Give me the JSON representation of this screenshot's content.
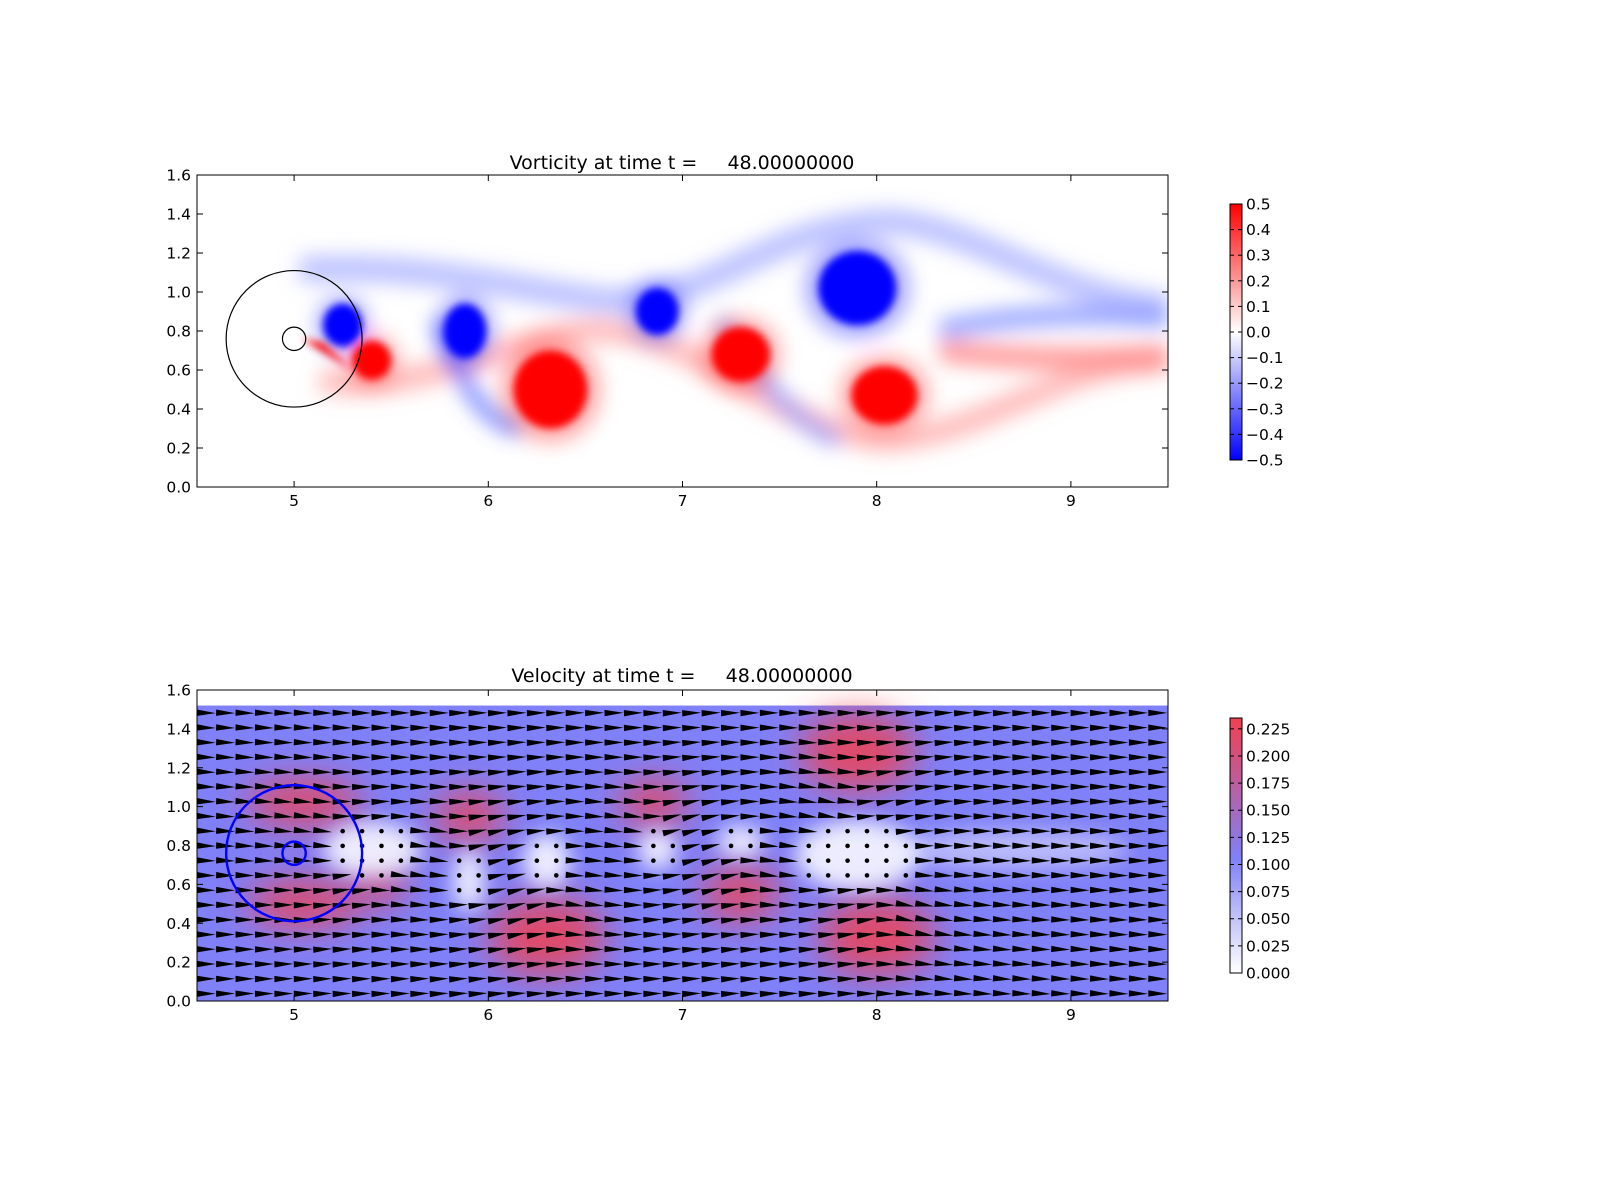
{
  "colors": {
    "vort_neg": "#0000ff",
    "vort_pos": "#ff0000",
    "vel_low": "#ffffff",
    "vel_mid": "#8080f8",
    "vel_high": "#f04050",
    "arrow": "#000000",
    "circle_top": "#000000",
    "circle_bottom": "#0000ff"
  },
  "chart_data": [
    {
      "type": "heatmap",
      "title": "Vorticity at time t =     48.00000000",
      "xlabel": "",
      "ylabel": "",
      "xlim": [
        4.5,
        9.5
      ],
      "ylim": [
        0.0,
        1.6
      ],
      "xticks": [
        5,
        6,
        7,
        8,
        9
      ],
      "yticks": [
        0.0,
        0.2,
        0.4,
        0.6,
        0.8,
        1.0,
        1.2,
        1.4,
        1.6
      ],
      "colorbar": {
        "range": [
          -0.5,
          0.5
        ],
        "ticks": [
          0.5,
          0.4,
          0.3,
          0.2,
          0.1,
          0.0,
          -0.1,
          -0.2,
          -0.3,
          -0.4,
          -0.5
        ],
        "tick_labels": [
          "0.5",
          "0.4",
          "0.3",
          "0.2",
          "0.1",
          "0.0",
          "−0.1",
          "−0.2",
          "−0.3",
          "−0.4",
          "−0.5"
        ]
      },
      "circles": [
        {
          "cx": 5.0,
          "cy": 0.76,
          "r": 0.35
        },
        {
          "cx": 5.0,
          "cy": 0.76,
          "r": 0.06
        }
      ],
      "vortices": [
        {
          "x": 5.25,
          "y": 0.83,
          "rx": 0.1,
          "ry": 0.11,
          "sign": -1
        },
        {
          "x": 5.4,
          "y": 0.65,
          "rx": 0.1,
          "ry": 0.1,
          "sign": 1
        },
        {
          "x": 5.88,
          "y": 0.8,
          "rx": 0.11,
          "ry": 0.14,
          "sign": -1
        },
        {
          "x": 6.32,
          "y": 0.5,
          "rx": 0.19,
          "ry": 0.2,
          "sign": 1
        },
        {
          "x": 6.87,
          "y": 0.9,
          "rx": 0.11,
          "ry": 0.12,
          "sign": -1
        },
        {
          "x": 7.3,
          "y": 0.68,
          "rx": 0.15,
          "ry": 0.14,
          "sign": 1
        },
        {
          "x": 7.9,
          "y": 1.02,
          "rx": 0.2,
          "ry": 0.19,
          "sign": -1
        },
        {
          "x": 8.04,
          "y": 0.47,
          "rx": 0.17,
          "ry": 0.15,
          "sign": 1
        }
      ]
    },
    {
      "type": "heatmap",
      "title": "Velocity at time t =     48.00000000",
      "xlabel": "",
      "ylabel": "",
      "xlim": [
        4.5,
        9.5
      ],
      "ylim": [
        0.0,
        1.6
      ],
      "field_ymax": 1.52,
      "xticks": [
        5,
        6,
        7,
        8,
        9
      ],
      "yticks": [
        0.0,
        0.2,
        0.4,
        0.6,
        0.8,
        1.0,
        1.2,
        1.4,
        1.6
      ],
      "colorbar": {
        "range": [
          0.0,
          0.235
        ],
        "ticks": [
          0.225,
          0.2,
          0.175,
          0.15,
          0.125,
          0.1,
          0.075,
          0.05,
          0.025,
          0.0
        ],
        "tick_labels": [
          "0.225",
          "0.200",
          "0.175",
          "0.150",
          "0.125",
          "0.100",
          "0.075",
          "0.050",
          "0.025",
          "0.000"
        ]
      },
      "background_speed": 0.1,
      "circles": [
        {
          "cx": 5.0,
          "cy": 0.76,
          "r": 0.35
        },
        {
          "cx": 5.0,
          "cy": 0.76,
          "r": 0.06
        }
      ],
      "fast_regions": [
        {
          "x": 5.05,
          "y": 1.02,
          "rx": 0.3,
          "ry": 0.12,
          "v": 0.17
        },
        {
          "x": 5.05,
          "y": 0.5,
          "rx": 0.3,
          "ry": 0.12,
          "v": 0.17
        },
        {
          "x": 5.45,
          "y": 0.6,
          "rx": 0.12,
          "ry": 0.1,
          "v": 0.19
        },
        {
          "x": 5.9,
          "y": 0.95,
          "rx": 0.18,
          "ry": 0.13,
          "v": 0.19
        },
        {
          "x": 6.3,
          "y": 0.33,
          "rx": 0.3,
          "ry": 0.2,
          "v": 0.21
        },
        {
          "x": 6.85,
          "y": 1.02,
          "rx": 0.18,
          "ry": 0.12,
          "v": 0.19
        },
        {
          "x": 7.3,
          "y": 0.55,
          "rx": 0.2,
          "ry": 0.14,
          "v": 0.2
        },
        {
          "x": 7.9,
          "y": 1.28,
          "rx": 0.3,
          "ry": 0.2,
          "v": 0.22
        },
        {
          "x": 8.0,
          "y": 0.33,
          "rx": 0.3,
          "ry": 0.2,
          "v": 0.21
        }
      ],
      "slow_regions": [
        {
          "x": 5.4,
          "y": 0.78,
          "rx": 0.25,
          "ry": 0.14,
          "v": 0.02
        },
        {
          "x": 5.9,
          "y": 0.62,
          "rx": 0.08,
          "ry": 0.16,
          "v": 0.02
        },
        {
          "x": 6.3,
          "y": 0.72,
          "rx": 0.12,
          "ry": 0.14,
          "v": 0.02
        },
        {
          "x": 6.87,
          "y": 0.78,
          "rx": 0.1,
          "ry": 0.1,
          "v": 0.02
        },
        {
          "x": 7.3,
          "y": 0.82,
          "rx": 0.12,
          "ry": 0.08,
          "v": 0.02
        },
        {
          "x": 7.9,
          "y": 0.75,
          "rx": 0.32,
          "ry": 0.18,
          "v": 0.02
        },
        {
          "x": 8.7,
          "y": 0.78,
          "rx": 0.6,
          "ry": 0.1,
          "v": 0.06
        }
      ],
      "quiver": {
        "nx": 50,
        "ny": 20,
        "x0": 4.5,
        "x1": 9.5,
        "y0": 0.0,
        "y1": 1.52
      }
    }
  ]
}
